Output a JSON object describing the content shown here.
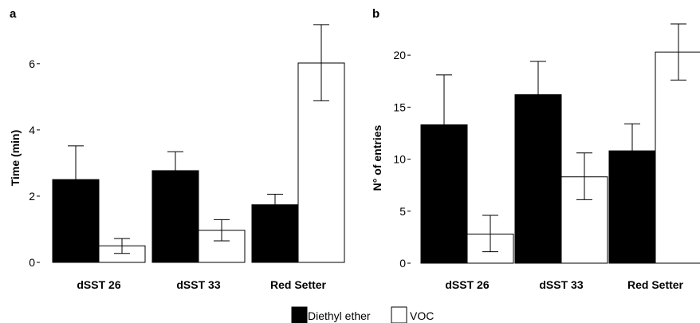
{
  "chart_data": [
    {
      "type": "bar",
      "panel": "a",
      "ylabel": "Time (min)",
      "xlabel": "",
      "ylim": [
        0,
        7.2
      ],
      "yticks": [
        0,
        2,
        4,
        6
      ],
      "grid": false,
      "categories": [
        "dSST 26",
        "dSST 33",
        "Red Setter"
      ],
      "series": [
        {
          "name": "Diethyl ether",
          "color": "#000000",
          "values": [
            2.5,
            2.77,
            1.74
          ],
          "err_low": [
            1.5,
            2.2,
            1.42
          ],
          "err_high": [
            3.52,
            3.34,
            2.06
          ]
        },
        {
          "name": "VOC",
          "color": "#ffffff",
          "values": [
            0.5,
            0.97,
            6.02
          ],
          "err_low": [
            0.27,
            0.65,
            4.88
          ],
          "err_high": [
            0.72,
            1.29,
            7.18
          ]
        }
      ]
    },
    {
      "type": "bar",
      "panel": "b",
      "ylabel": "N° of entries",
      "xlabel": "",
      "ylim": [
        0,
        23
      ],
      "yticks": [
        0,
        5,
        10,
        15,
        20
      ],
      "grid": false,
      "categories": [
        "dSST 26",
        "dSST 33",
        "Red Setter"
      ],
      "series": [
        {
          "name": "Diethyl ether",
          "color": "#000000",
          "values": [
            13.3,
            16.2,
            10.8
          ],
          "err_low": [
            8.5,
            13.0,
            8.2
          ],
          "err_high": [
            18.1,
            19.4,
            13.4
          ]
        },
        {
          "name": "VOC",
          "color": "#ffffff",
          "values": [
            2.8,
            8.3,
            20.3
          ],
          "err_low": [
            1.1,
            6.1,
            17.6
          ],
          "err_high": [
            4.6,
            10.6,
            23.0
          ]
        }
      ]
    }
  ],
  "legend": {
    "placement": "bottom-center",
    "items": [
      {
        "label": "Diethyl ether",
        "color": "#000000"
      },
      {
        "label": "VOC",
        "color": "#ffffff"
      }
    ]
  }
}
